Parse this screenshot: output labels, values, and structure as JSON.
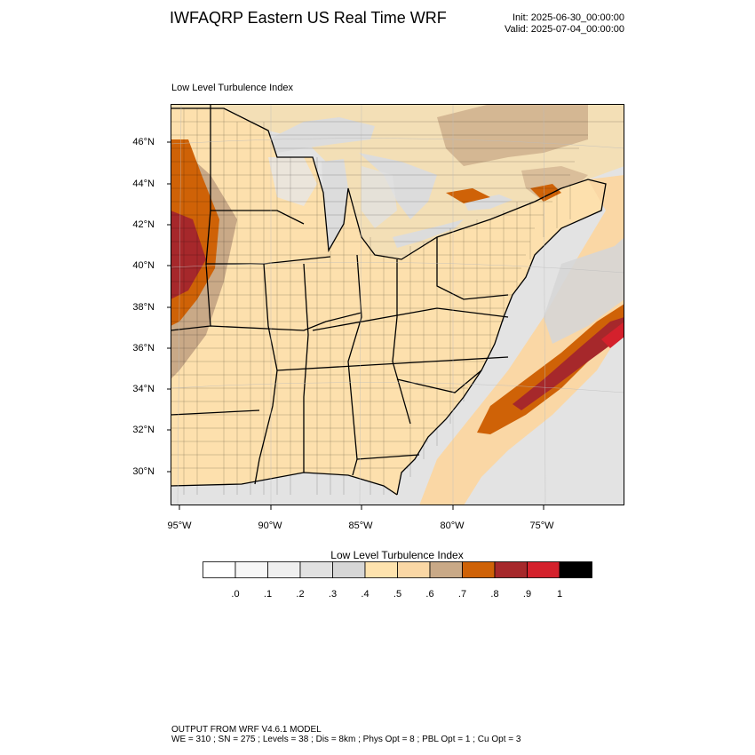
{
  "header": {
    "title": "IWFAQRP Eastern US Real Time WRF",
    "init": "Init: 2025-06-30_00:00:00",
    "valid": "Valid: 2025-07-04_00:00:00"
  },
  "map": {
    "subtitle": "Low Level Turbulence Index",
    "lat_labels": [
      "46°N",
      "44°N",
      "42°N",
      "40°N",
      "38°N",
      "36°N",
      "34°N",
      "32°N",
      "30°N"
    ],
    "lon_labels": [
      "95°W",
      "90°W",
      "85°W",
      "80°W",
      "75°W"
    ],
    "colors": {
      "ocean": "#e6e6e6",
      "land": "#fde0ad",
      "border": "#000000"
    }
  },
  "colorbar": {
    "title": "Low Level Turbulence Index",
    "colors": [
      "#ffffff",
      "#f7f7f7",
      "#efefef",
      "#e1e1e1",
      "#d6d6d6",
      "#fee3ae",
      "#fad7a5",
      "#c9a987",
      "#cf6207",
      "#a6282b",
      "#d4212c",
      "#000000"
    ],
    "labels": [
      ".0",
      ".1",
      ".2",
      ".3",
      ".4",
      ".5",
      ".6",
      ".7",
      ".8",
      ".9",
      "1"
    ]
  },
  "footer": {
    "line1": "OUTPUT FROM WRF V4.6.1 MODEL",
    "line2": "WE = 310 ; SN = 275 ; Levels = 38 ; Dis = 8km ; Phys Opt = 8 ; PBL Opt = 1 ; Cu Opt = 3"
  }
}
